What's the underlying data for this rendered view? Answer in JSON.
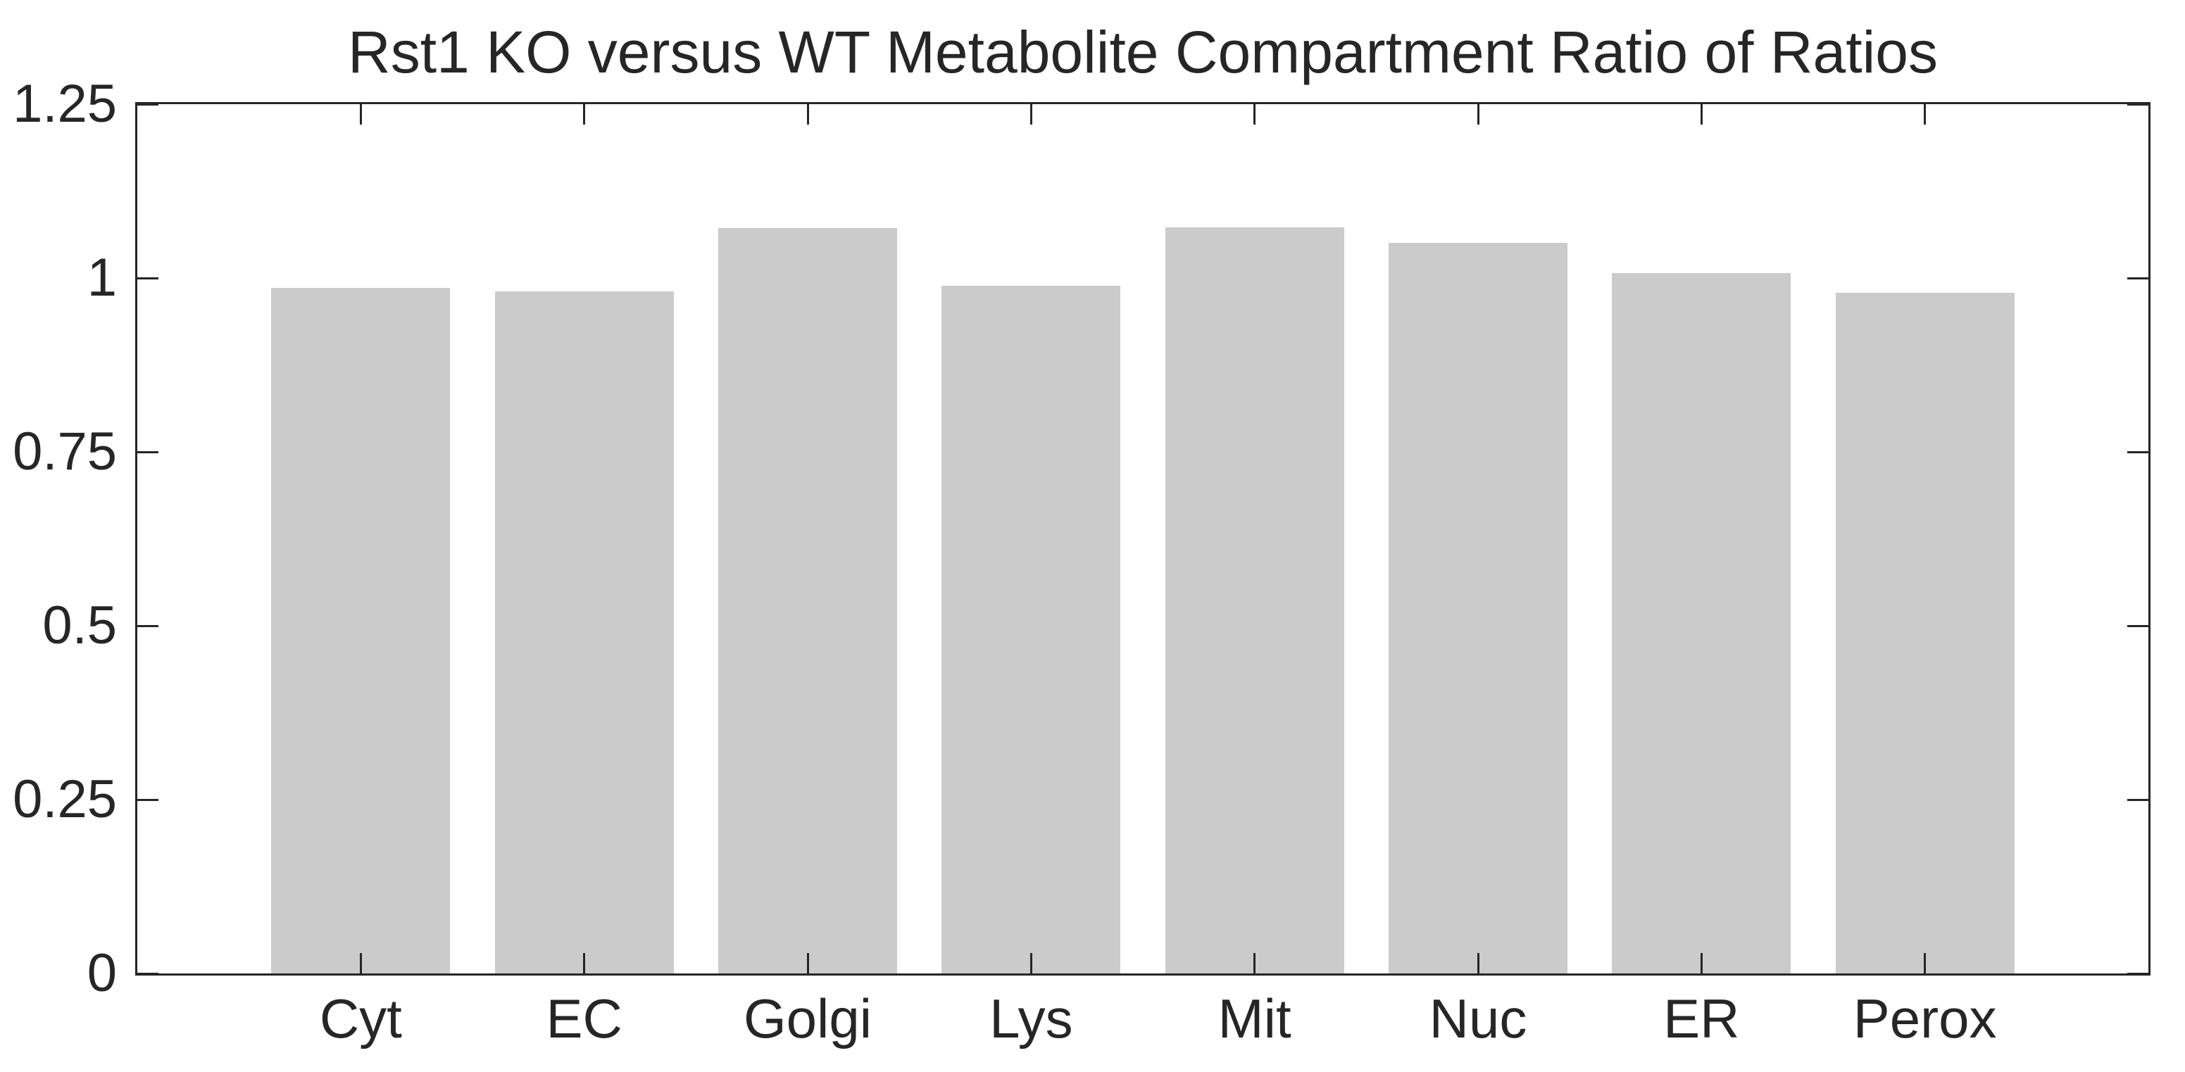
{
  "chart_data": {
    "type": "bar",
    "title": "Rst1 KO versus WT Metabolite Compartment Ratio of Ratios",
    "categories": [
      "Cyt",
      "EC",
      "Golgi",
      "Lys",
      "Mit",
      "Nuc",
      "ER",
      "Perox"
    ],
    "values": [
      0.986,
      0.981,
      1.072,
      0.989,
      1.073,
      1.051,
      1.007,
      0.979
    ],
    "xlabel": "",
    "ylabel": "",
    "ylim": [
      0,
      1.25
    ],
    "yticks": [
      0,
      0.25,
      0.5,
      0.75,
      1,
      1.25
    ],
    "ytick_labels": [
      "0",
      "0.25",
      "0.5",
      "0.75",
      "1",
      "1.25"
    ],
    "xlim": [
      0,
      9
    ],
    "bar_positions": [
      1,
      2,
      3,
      4,
      5,
      6,
      7,
      8
    ],
    "bar_width": 0.8,
    "bar_color": "#cbcbcb",
    "axis_color": "#262626",
    "text_color": "#262626",
    "background": "#ffffff",
    "grid": false,
    "legend": null,
    "box": true,
    "tick_direction": "in"
  }
}
